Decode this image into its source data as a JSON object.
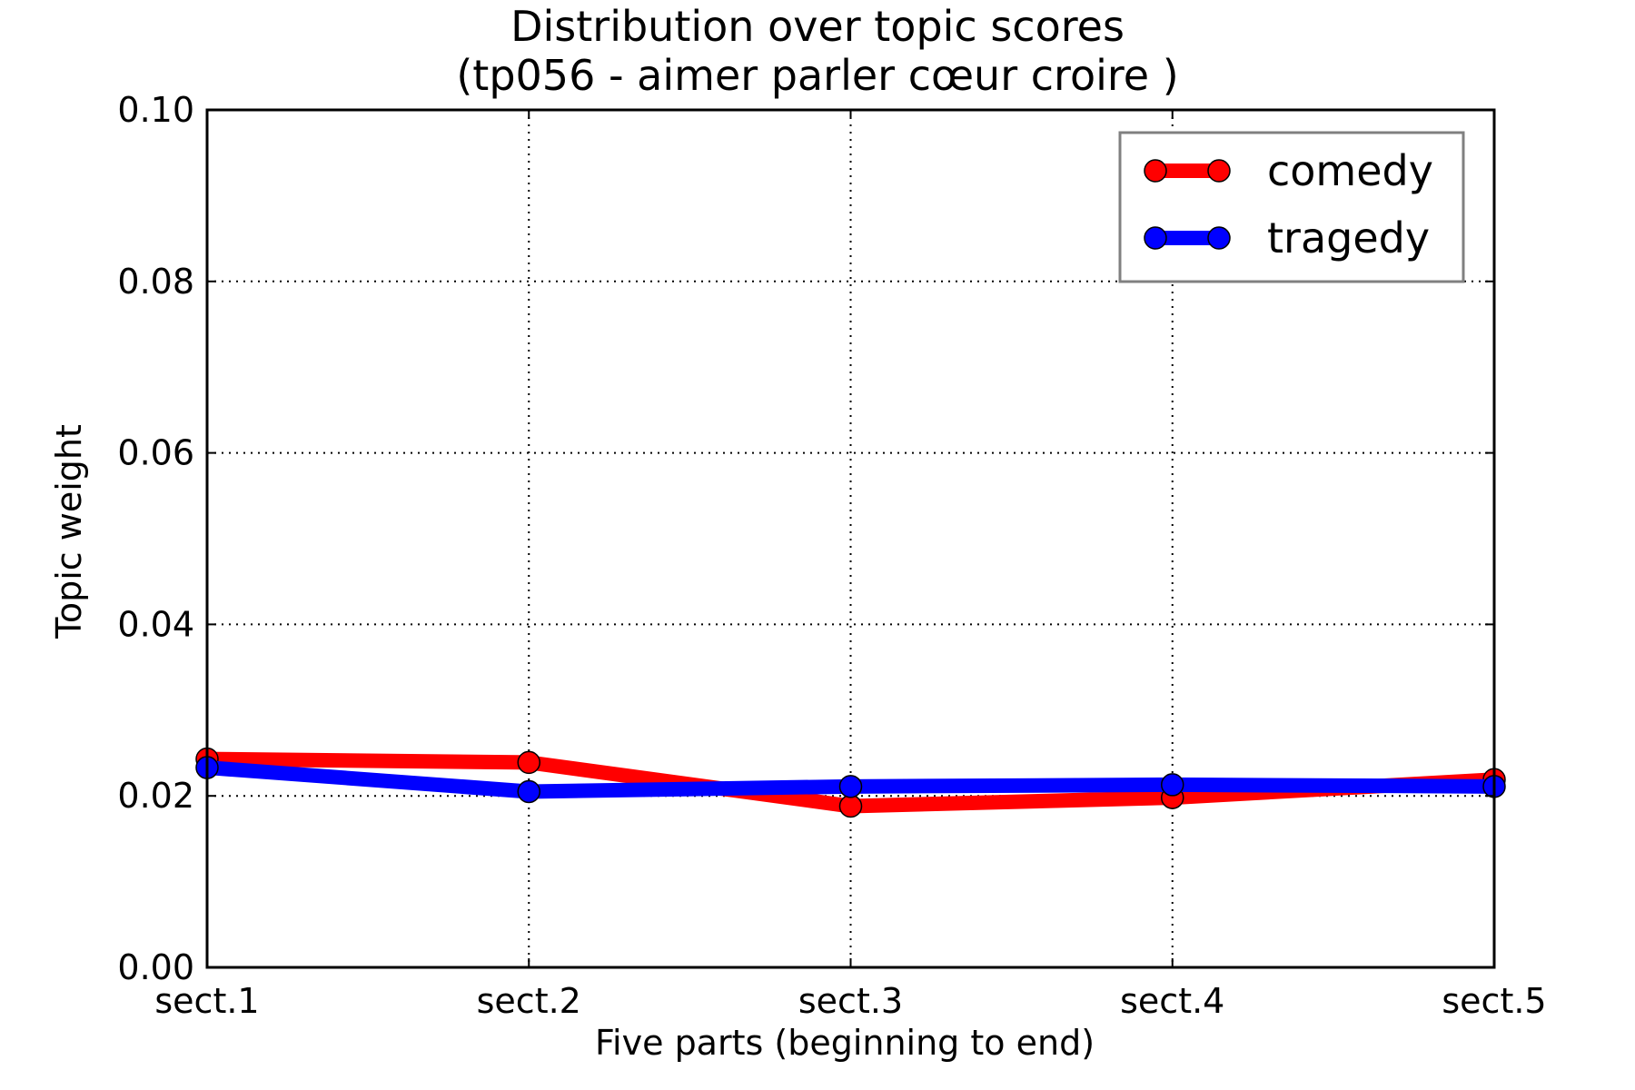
{
  "chart_data": {
    "type": "line",
    "title": "Distribution over topic scores",
    "subtitle": "(tp056 - aimer parler cœur croire )",
    "xlabel": "Five parts (beginning to end)",
    "ylabel": "Topic weight",
    "categories": [
      "sect.1",
      "sect.2",
      "sect.3",
      "sect.4",
      "sect.5"
    ],
    "ylim": [
      0,
      0.1
    ],
    "yticks": [
      "0.00",
      "0.02",
      "0.04",
      "0.06",
      "0.08",
      "0.10"
    ],
    "grid": true,
    "legend_position": "top-right",
    "series": [
      {
        "name": "comedy",
        "color": "#ff0000",
        "values": [
          0.0243,
          0.0239,
          0.0188,
          0.0198,
          0.0219
        ]
      },
      {
        "name": "tragedy",
        "color": "#0000ff",
        "values": [
          0.0233,
          0.0205,
          0.0211,
          0.0213,
          0.0211
        ]
      }
    ]
  }
}
